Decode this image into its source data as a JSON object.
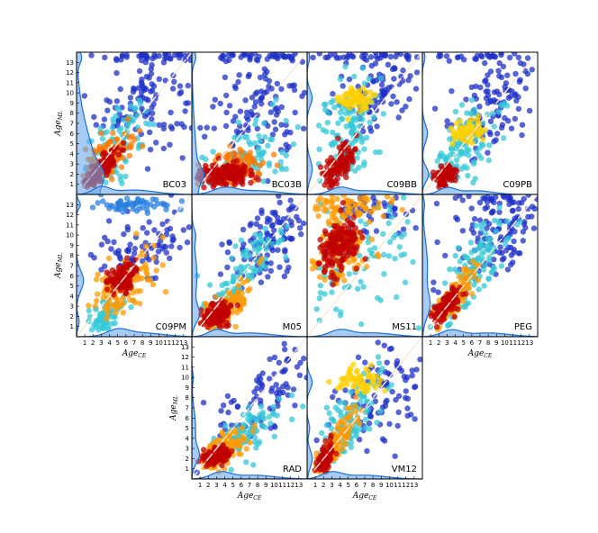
{
  "chart_data": [
    {
      "type": "scatter",
      "label": "BC03",
      "ylabel_main": "Age",
      "ylabel_sub": "ML",
      "xlabel_main": "",
      "xlabel_sub": "",
      "xlim": [
        0,
        14
      ],
      "ylim": [
        0,
        14
      ],
      "show_xticks": false,
      "show_yticks": true,
      "clusters": [
        {
          "x": 3.0,
          "y": 2.5,
          "sx": 1.0,
          "sy": 0.9,
          "n": 140,
          "rho": 0.8,
          "c": "#c00000"
        },
        {
          "x": 3.8,
          "y": 3.6,
          "sx": 1.4,
          "sy": 1.4,
          "n": 120,
          "rho": 0.7,
          "c": "#ff7a00"
        },
        {
          "x": 5.2,
          "y": 5.0,
          "sx": 2.0,
          "sy": 2.0,
          "n": 90,
          "rho": 0.6,
          "c": "#36c8d8"
        },
        {
          "x": 8.5,
          "y": 9.5,
          "sx": 3.0,
          "sy": 2.5,
          "n": 110,
          "rho": 0.2,
          "c": "#1e30c8"
        },
        {
          "x": 9.0,
          "y": 13.6,
          "sx": 3.5,
          "sy": 0.2,
          "n": 40,
          "rho": 0.0,
          "c": "#1e30c8"
        }
      ],
      "kde_y": [
        0.5,
        2.0,
        0.9,
        1.8,
        0.25,
        5.0,
        0.35,
        13.5
      ],
      "kde_x": [
        0.55,
        3.0,
        1.0,
        0.35,
        7.0,
        2.5
      ]
    },
    {
      "type": "scatter",
      "label": "BC03B",
      "ylabel_main": "",
      "ylabel_sub": "",
      "xlabel_main": "",
      "xlabel_sub": "",
      "xlim": [
        0,
        14
      ],
      "ylim": [
        0,
        14
      ],
      "show_xticks": false,
      "show_yticks": false,
      "clusters": [
        {
          "x": 4.0,
          "y": 2.0,
          "sx": 1.6,
          "sy": 0.5,
          "n": 150,
          "rho": 0.1,
          "c": "#c00000"
        },
        {
          "x": 5.0,
          "y": 2.6,
          "sx": 2.0,
          "sy": 0.9,
          "n": 110,
          "rho": 0.2,
          "c": "#ff7a00"
        },
        {
          "x": 7.0,
          "y": 4.0,
          "sx": 2.6,
          "sy": 1.8,
          "n": 80,
          "rho": 0.4,
          "c": "#36c8d8"
        },
        {
          "x": 8.0,
          "y": 9.0,
          "sx": 3.5,
          "sy": 3.0,
          "n": 120,
          "rho": 0.1,
          "c": "#1e30c8"
        },
        {
          "x": 9.0,
          "y": 13.6,
          "sx": 3.5,
          "sy": 0.2,
          "n": 35,
          "rho": 0.0,
          "c": "#1e30c8"
        }
      ],
      "kde_y": [
        0.5,
        2.0,
        0.7,
        0.5,
        0.2,
        5.0,
        0.3,
        13.5
      ],
      "kde_x": [
        0.5,
        4.0,
        1.4,
        0.3,
        8.0,
        2.5
      ]
    },
    {
      "type": "scatter",
      "label": "C09BB",
      "ylabel_main": "",
      "ylabel_sub": "",
      "xlabel_main": "",
      "xlabel_sub": "",
      "xlim": [
        0,
        14
      ],
      "ylim": [
        0,
        14
      ],
      "show_xticks": false,
      "show_yticks": false,
      "clusters": [
        {
          "x": 3.8,
          "y": 2.8,
          "sx": 1.0,
          "sy": 1.2,
          "n": 120,
          "rho": 0.7,
          "c": "#c00000"
        },
        {
          "x": 6.0,
          "y": 9.4,
          "sx": 1.0,
          "sy": 0.6,
          "n": 70,
          "rho": 0.0,
          "c": "#ffd000"
        },
        {
          "x": 5.0,
          "y": 6.0,
          "sx": 2.0,
          "sy": 3.0,
          "n": 120,
          "rho": 0.5,
          "c": "#36c8d8"
        },
        {
          "x": 8.5,
          "y": 10.0,
          "sx": 3.0,
          "sy": 2.0,
          "n": 100,
          "rho": 0.2,
          "c": "#1e30c8"
        },
        {
          "x": 9.0,
          "y": 13.6,
          "sx": 3.5,
          "sy": 0.2,
          "n": 40,
          "rho": 0.0,
          "c": "#1e30c8"
        }
      ],
      "kde_y": [
        0.4,
        2.5,
        1.0,
        0.4,
        9.5,
        0.8,
        0.2,
        13.5
      ],
      "kde_x": [
        0.5,
        4.0,
        1.2,
        0.3,
        8.0,
        2.5
      ]
    },
    {
      "type": "scatter",
      "label": "C09PB",
      "ylabel_main": "",
      "ylabel_sub": "",
      "xlabel_main": "",
      "xlabel_sub": "",
      "xlim": [
        0,
        14
      ],
      "ylim": [
        0,
        14
      ],
      "show_xticks": false,
      "show_yticks": false,
      "clusters": [
        {
          "x": 2.8,
          "y": 1.8,
          "sx": 0.6,
          "sy": 0.5,
          "n": 90,
          "rho": 0.3,
          "c": "#c00000"
        },
        {
          "x": 5.5,
          "y": 6.2,
          "sx": 1.0,
          "sy": 0.6,
          "n": 60,
          "rho": 0.3,
          "c": "#ffd000"
        },
        {
          "x": 5.0,
          "y": 4.5,
          "sx": 2.0,
          "sy": 2.2,
          "n": 120,
          "rho": 0.6,
          "c": "#36c8d8"
        },
        {
          "x": 8.5,
          "y": 8.5,
          "sx": 3.0,
          "sy": 2.5,
          "n": 110,
          "rho": 0.4,
          "c": "#1e30c8"
        },
        {
          "x": 9.0,
          "y": 13.6,
          "sx": 3.5,
          "sy": 0.2,
          "n": 35,
          "rho": 0.0,
          "c": "#1e30c8"
        }
      ],
      "kde_y": [
        0.5,
        2.0,
        0.7,
        0.4,
        6.0,
        0.9,
        0.2,
        13.5
      ],
      "kde_x": [
        0.5,
        3.0,
        1.0,
        0.3,
        6.5,
        2.0
      ]
    },
    {
      "type": "scatter",
      "label": "C09PM",
      "ylabel_main": "Age",
      "ylabel_sub": "ML",
      "xlabel_main": "Age",
      "xlabel_sub": "CE",
      "xlim": [
        0,
        14
      ],
      "ylim": [
        0,
        14
      ],
      "show_xticks": true,
      "show_yticks": true,
      "clusters": [
        {
          "x": 5.5,
          "y": 5.8,
          "sx": 0.9,
          "sy": 0.7,
          "n": 110,
          "rho": 0.2,
          "c": "#c00000"
        },
        {
          "x": 5.5,
          "y": 5.0,
          "sx": 1.8,
          "sy": 1.6,
          "n": 120,
          "rho": 0.5,
          "c": "#ff9a00"
        },
        {
          "x": 3.5,
          "y": 2.0,
          "sx": 1.2,
          "sy": 1.0,
          "n": 70,
          "rho": 0.5,
          "c": "#36c8d8"
        },
        {
          "x": 7.0,
          "y": 13.0,
          "sx": 3.0,
          "sy": 0.4,
          "n": 60,
          "rho": 0.0,
          "c": "#2a80e0"
        },
        {
          "x": 8.5,
          "y": 9.0,
          "sx": 3.0,
          "sy": 1.8,
          "n": 90,
          "rho": 0.2,
          "c": "#1e30c8"
        }
      ],
      "kde_y": [
        0.55,
        5.5,
        1.0,
        0.3,
        13.0,
        0.4,
        0.2,
        1.5
      ],
      "kde_x": [
        0.5,
        5.0,
        1.3,
        0.3,
        8.0,
        2.5
      ]
    },
    {
      "type": "scatter",
      "label": "M05",
      "ylabel_main": "",
      "ylabel_sub": "",
      "xlabel_main": "",
      "xlabel_sub": "",
      "xlim": [
        0,
        14
      ],
      "ylim": [
        0,
        14
      ],
      "show_xticks": false,
      "show_yticks": false,
      "clusters": [
        {
          "x": 3.0,
          "y": 2.2,
          "sx": 1.0,
          "sy": 0.6,
          "n": 120,
          "rho": 0.3,
          "c": "#c00000"
        },
        {
          "x": 4.0,
          "y": 3.0,
          "sx": 1.6,
          "sy": 1.2,
          "n": 100,
          "rho": 0.6,
          "c": "#ff9a00"
        },
        {
          "x": 6.0,
          "y": 6.0,
          "sx": 2.4,
          "sy": 2.4,
          "n": 110,
          "rho": 0.85,
          "c": "#36c8d8"
        },
        {
          "x": 9.0,
          "y": 9.5,
          "sx": 2.8,
          "sy": 2.6,
          "n": 120,
          "rho": 0.6,
          "c": "#1e30c8"
        }
      ],
      "kde_y": [
        0.5,
        2.2,
        0.8,
        0.4,
        6.0,
        2.5,
        0.2,
        10.0
      ],
      "kde_x": [
        0.5,
        3.0,
        1.0,
        0.3,
        7.0,
        2.5
      ]
    },
    {
      "type": "scatter",
      "label": "MS11",
      "ylabel_main": "",
      "ylabel_sub": "",
      "xlabel_main": "",
      "xlabel_sub": "",
      "xlim": [
        0,
        14
      ],
      "ylim": [
        0,
        14
      ],
      "show_xticks": false,
      "show_yticks": false,
      "clusters": [
        {
          "x": 3.0,
          "y": 8.5,
          "sx": 0.7,
          "sy": 1.2,
          "n": 80,
          "rho": 0.0,
          "c": "#c00000"
        },
        {
          "x": 4.8,
          "y": 9.5,
          "sx": 0.8,
          "sy": 1.2,
          "n": 80,
          "rho": 0.0,
          "c": "#c00000"
        },
        {
          "x": 4.0,
          "y": 9.0,
          "sx": 1.8,
          "sy": 2.0,
          "n": 130,
          "rho": 0.1,
          "c": "#ff9a00"
        },
        {
          "x": 5.0,
          "y": 12.8,
          "sx": 2.2,
          "sy": 0.6,
          "n": 60,
          "rho": 0.0,
          "c": "#ff9a00"
        },
        {
          "x": 6.0,
          "y": 7.5,
          "sx": 3.0,
          "sy": 3.0,
          "n": 90,
          "rho": 0.2,
          "c": "#36c8d8"
        },
        {
          "x": 9.0,
          "y": 12.5,
          "sx": 3.0,
          "sy": 1.0,
          "n": 50,
          "rho": 0.0,
          "c": "#1e30c8"
        }
      ],
      "kde_y": [
        0.0,
        9.0,
        1.0,
        0.0,
        13.0,
        0.5,
        0.0,
        5.0
      ],
      "kde_x": [
        0.5,
        4.0,
        1.3,
        0.3,
        8.0,
        2.5
      ]
    },
    {
      "type": "scatter",
      "label": "PEG",
      "ylabel_main": "",
      "ylabel_sub": "",
      "xlabel_main": "Age",
      "xlabel_sub": "CE",
      "xlim": [
        0,
        14
      ],
      "ylim": [
        0,
        14
      ],
      "show_xticks": true,
      "show_yticks": false,
      "clusters": [
        {
          "x": 3.0,
          "y": 3.2,
          "sx": 0.9,
          "sy": 0.9,
          "n": 110,
          "rho": 0.75,
          "c": "#c00000"
        },
        {
          "x": 4.0,
          "y": 4.0,
          "sx": 1.4,
          "sy": 1.4,
          "n": 110,
          "rho": 0.8,
          "c": "#ff9a00"
        },
        {
          "x": 6.0,
          "y": 6.5,
          "sx": 2.2,
          "sy": 2.5,
          "n": 120,
          "rho": 0.75,
          "c": "#36c8d8"
        },
        {
          "x": 9.5,
          "y": 10.0,
          "sx": 3.0,
          "sy": 2.5,
          "n": 120,
          "rho": 0.4,
          "c": "#1e30c8"
        },
        {
          "x": 9.0,
          "y": 13.5,
          "sx": 3.0,
          "sy": 0.25,
          "n": 30,
          "rho": 0.0,
          "c": "#1e30c8"
        }
      ],
      "kde_y": [
        0.5,
        3.0,
        1.2,
        0.4,
        7.0,
        2.5,
        0.15,
        13.0
      ],
      "kde_x": [
        0.5,
        3.5,
        1.2,
        0.3,
        8.0,
        2.5
      ]
    },
    {
      "type": "scatter",
      "label": "RAD",
      "ylabel_main": "Age",
      "ylabel_sub": "ML",
      "xlabel_main": "Age",
      "xlabel_sub": "CE",
      "xlim": [
        0,
        14
      ],
      "ylim": [
        0,
        14
      ],
      "show_xticks": true,
      "show_yticks": true,
      "clusters": [
        {
          "x": 3.0,
          "y": 2.3,
          "sx": 0.8,
          "sy": 0.5,
          "n": 110,
          "rho": 0.4,
          "c": "#c00000"
        },
        {
          "x": 4.0,
          "y": 3.0,
          "sx": 1.4,
          "sy": 1.0,
          "n": 110,
          "rho": 0.6,
          "c": "#ff9a00"
        },
        {
          "x": 6.5,
          "y": 4.5,
          "sx": 2.0,
          "sy": 1.5,
          "n": 100,
          "rho": 0.6,
          "c": "#36c8d8"
        },
        {
          "x": 9.0,
          "y": 8.5,
          "sx": 3.0,
          "sy": 2.5,
          "n": 90,
          "rho": 0.5,
          "c": "#1e30c8"
        }
      ],
      "kde_y": [
        0.5,
        2.3,
        0.8,
        0.3,
        5.0,
        1.8,
        0.1,
        10.0
      ],
      "kde_x": [
        0.5,
        3.5,
        1.2,
        0.3,
        7.5,
        2.5
      ]
    },
    {
      "type": "scatter",
      "label": "VM12",
      "ylabel_main": "",
      "ylabel_sub": "",
      "xlabel_main": "Age",
      "xlabel_sub": "CE",
      "xlim": [
        0,
        14
      ],
      "ylim": [
        0,
        14
      ],
      "show_xticks": true,
      "show_yticks": false,
      "clusters": [
        {
          "x": 2.2,
          "y": 2.0,
          "sx": 0.6,
          "sy": 0.8,
          "n": 80,
          "rho": 0.6,
          "c": "#c00000"
        },
        {
          "x": 3.5,
          "y": 3.5,
          "sx": 1.2,
          "sy": 1.5,
          "n": 110,
          "rho": 0.8,
          "c": "#ff9a00"
        },
        {
          "x": 6.0,
          "y": 9.5,
          "sx": 1.5,
          "sy": 0.6,
          "n": 60,
          "rho": 0.0,
          "c": "#ffd000"
        },
        {
          "x": 5.5,
          "y": 6.0,
          "sx": 2.2,
          "sy": 2.5,
          "n": 110,
          "rho": 0.7,
          "c": "#36c8d8"
        },
        {
          "x": 9.5,
          "y": 8.5,
          "sx": 3.0,
          "sy": 2.5,
          "n": 100,
          "rho": 0.3,
          "c": "#1e30c8"
        }
      ],
      "kde_y": [
        0.4,
        2.0,
        0.9,
        0.4,
        9.5,
        0.7,
        0.2,
        5.0
      ],
      "kde_x": [
        0.5,
        3.0,
        1.2,
        0.3,
        7.0,
        2.5
      ]
    }
  ]
}
